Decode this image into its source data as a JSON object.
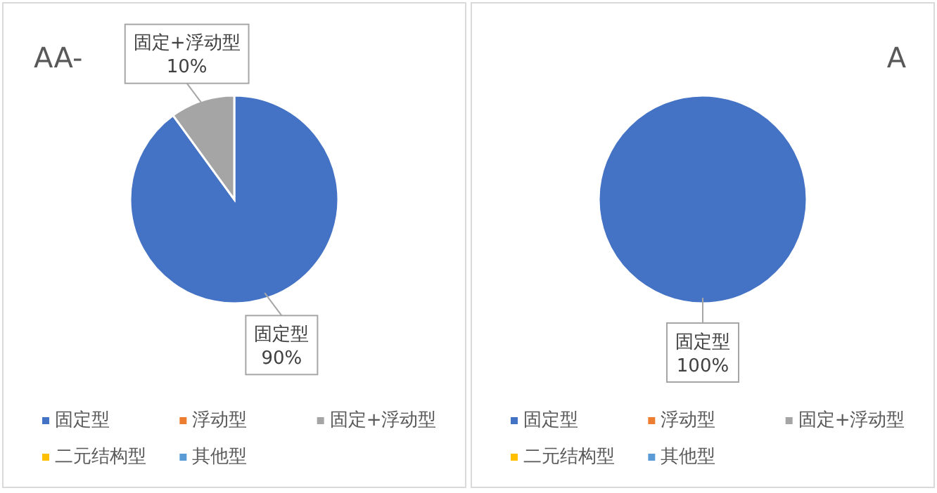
{
  "chart_data": [
    {
      "type": "pie",
      "title": "AA-",
      "categories": [
        "固定型",
        "浮动型",
        "固定+浮动型",
        "二元结构型",
        "其他型"
      ],
      "values": [
        90,
        0,
        10,
        0,
        0
      ],
      "colors": [
        "#4472c4",
        "#ed7d31",
        "#a5a5a5",
        "#ffc000",
        "#5b9bd5"
      ],
      "value_labels": [
        "固定型\n90%",
        null,
        "固定+浮动型\n10%",
        null,
        null
      ],
      "legend": "bottom"
    },
    {
      "type": "pie",
      "title": "A",
      "categories": [
        "固定型",
        "浮动型",
        "固定+浮动型",
        "二元结构型",
        "其他型"
      ],
      "values": [
        100,
        0,
        0,
        0,
        0
      ],
      "colors": [
        "#4472c4",
        "#ed7d31",
        "#a5a5a5",
        "#ffc000",
        "#5b9bd5"
      ],
      "value_labels": [
        "固定型\n100%",
        null,
        null,
        null,
        null
      ],
      "legend": "bottom"
    }
  ]
}
